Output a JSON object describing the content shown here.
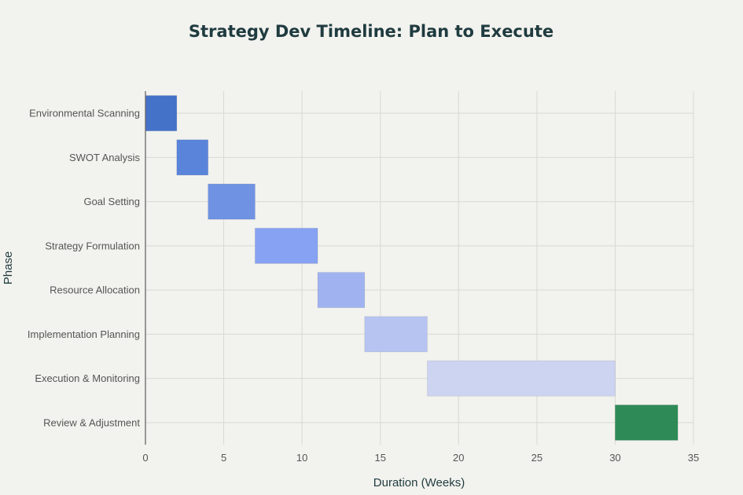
{
  "chart_data": {
    "type": "bar",
    "orientation": "horizontal-gantt",
    "title": "Strategy Dev Timeline: Plan to Execute",
    "xlabel": "Duration (Weeks)",
    "ylabel": "Phase",
    "xlim": [
      0,
      35
    ],
    "xticks": [
      0,
      5,
      10,
      15,
      20,
      25,
      30,
      35
    ],
    "grid": true,
    "tasks": [
      {
        "name": "Environmental Scanning",
        "start": 0,
        "end": 2,
        "color": "#4472c9"
      },
      {
        "name": "SWOT Analysis",
        "start": 2,
        "end": 4,
        "color": "#5a84d9"
      },
      {
        "name": "Goal Setting",
        "start": 4,
        "end": 7,
        "color": "#6f92e3"
      },
      {
        "name": "Strategy Formulation",
        "start": 7,
        "end": 11,
        "color": "#87a2f2"
      },
      {
        "name": "Resource Allocation",
        "start": 11,
        "end": 14,
        "color": "#a0b3f0"
      },
      {
        "name": "Implementation Planning",
        "start": 14,
        "end": 18,
        "color": "#b7c4f2"
      },
      {
        "name": "Execution & Monitoring",
        "start": 18,
        "end": 30,
        "color": "#cdd4f2"
      },
      {
        "name": "Review & Adjustment",
        "start": 30,
        "end": 34,
        "color": "#2e8b57"
      }
    ]
  }
}
